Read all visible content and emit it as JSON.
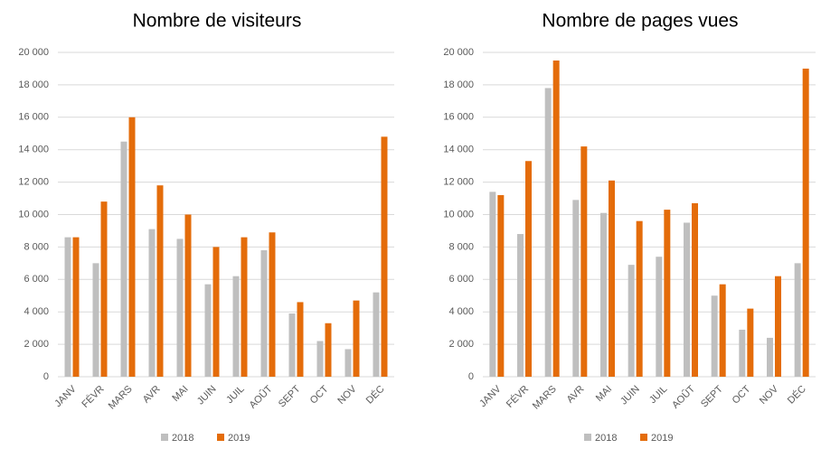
{
  "chart_data": [
    {
      "type": "bar",
      "title": "Nombre de visiteurs",
      "categories": [
        "JANV",
        "FÉVR",
        "MARS",
        "AVR",
        "MAI",
        "JUIN",
        "JUIL",
        "AOÛT",
        "SEPT",
        "OCT",
        "NOV",
        "DÉC"
      ],
      "series": [
        {
          "name": "2018",
          "color": "#bfbfbf",
          "values": [
            8600,
            7000,
            14500,
            9100,
            8500,
            5700,
            6200,
            7800,
            3900,
            2200,
            1700,
            5200
          ]
        },
        {
          "name": "2019",
          "color": "#e46c0a",
          "values": [
            8600,
            10800,
            16000,
            11800,
            10000,
            8000,
            8600,
            8900,
            4600,
            3300,
            4700,
            14800
          ]
        }
      ],
      "ylim": [
        0,
        20000
      ],
      "yticks": [
        0,
        {
          "value": 2000,
          "label": "2 000"
        },
        {
          "value": 4000,
          "label": "4 000"
        },
        {
          "value": 6000,
          "label": "6 000"
        },
        {
          "value": 8000,
          "label": "8 000"
        },
        {
          "value": 10000,
          "label": "10 000"
        },
        {
          "value": 12000,
          "label": "12 000"
        },
        {
          "value": 14000,
          "label": "14 000"
        },
        {
          "value": 16000,
          "label": "16 000"
        },
        {
          "value": 18000,
          "label": "18 000"
        },
        {
          "value": 20000,
          "label": "20 000"
        }
      ],
      "grid": true,
      "legend": "bottom"
    },
    {
      "type": "bar",
      "title": "Nombre de pages vues",
      "categories": [
        "JANV",
        "FÉVR",
        "MARS",
        "AVR",
        "MAI",
        "JUIN",
        "JUIL",
        "AOÛT",
        "SEPT",
        "OCT",
        "NOV",
        "DÉC"
      ],
      "series": [
        {
          "name": "2018",
          "color": "#bfbfbf",
          "values": [
            11400,
            8800,
            17800,
            10900,
            10100,
            6900,
            7400,
            9500,
            5000,
            2900,
            2400,
            7000
          ]
        },
        {
          "name": "2019",
          "color": "#e46c0a",
          "values": [
            11200,
            13300,
            19500,
            14200,
            12100,
            9600,
            10300,
            10700,
            5700,
            4200,
            6200,
            19000
          ]
        }
      ],
      "ylim": [
        0,
        20000
      ],
      "yticks": [
        0,
        {
          "value": 2000,
          "label": "2 000"
        },
        {
          "value": 4000,
          "label": "4 000"
        },
        {
          "value": 6000,
          "label": "6 000"
        },
        {
          "value": 8000,
          "label": "8 000"
        },
        {
          "value": 10000,
          "label": "10 000"
        },
        {
          "value": 12000,
          "label": "12 000"
        },
        {
          "value": 14000,
          "label": "14 000"
        },
        {
          "value": 16000,
          "label": "16 000"
        },
        {
          "value": 18000,
          "label": "18 000"
        },
        {
          "value": 20000,
          "label": "20 000"
        }
      ],
      "grid": true,
      "legend": "bottom"
    }
  ]
}
